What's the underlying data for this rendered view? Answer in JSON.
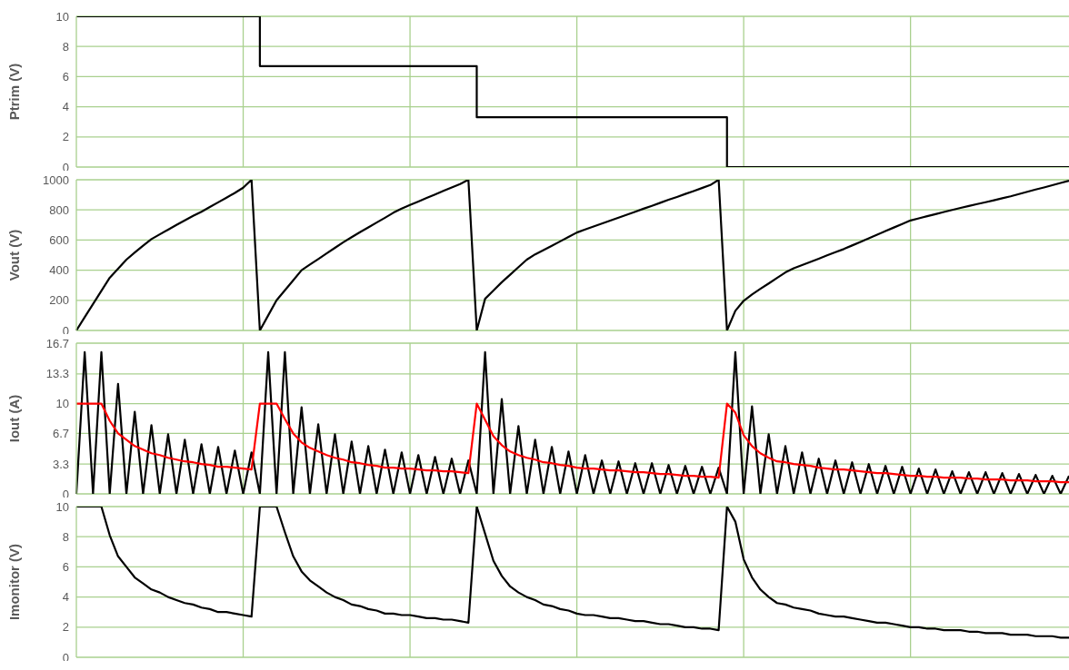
{
  "chart_data": [
    {
      "type": "step",
      "ylabel": "Ptrim (V)",
      "categories": [
        null,
        null,
        null,
        null,
        null,
        null,
        null,
        null,
        null,
        null,
        null,
        null,
        null,
        null,
        null,
        null,
        null,
        null,
        null,
        null,
        null,
        null,
        null,
        null,
        null,
        null,
        null,
        null,
        null,
        null,
        null,
        null,
        null,
        null,
        null,
        null,
        null,
        null,
        null,
        null,
        null,
        null,
        null,
        null,
        null,
        null,
        null,
        null,
        null,
        null,
        null,
        null,
        null,
        null,
        null,
        null,
        null,
        null,
        null,
        null,
        null,
        null,
        null,
        null,
        null,
        null,
        null,
        null,
        null,
        null,
        null,
        null,
        null,
        null,
        null,
        null,
        null,
        null,
        null,
        null,
        null,
        null,
        null,
        null,
        null,
        null,
        null,
        null,
        null,
        null,
        null,
        null,
        null,
        null,
        null,
        null,
        null,
        null,
        null,
        null,
        null,
        null,
        null,
        null,
        null,
        null,
        null,
        null,
        null,
        null,
        null,
        null,
        null,
        null,
        null,
        null,
        null,
        null,
        null,
        null
      ],
      "ylim": [
        0,
        10
      ],
      "yticks": [
        0,
        2,
        4,
        6,
        8,
        10
      ],
      "grid": true,
      "tick_labels": "y",
      "series": [
        {
          "color": "#000000",
          "values": [
            10,
            10,
            10,
            10,
            10,
            10,
            10,
            10,
            10,
            10,
            10,
            10,
            10,
            10,
            10,
            10,
            10,
            10,
            10,
            10,
            10,
            10,
            6.7,
            6.7,
            6.7,
            6.7,
            6.7,
            6.7,
            6.7,
            6.7,
            6.7,
            6.7,
            6.7,
            6.7,
            6.7,
            6.7,
            6.7,
            6.7,
            6.7,
            6.7,
            6.7,
            6.7,
            6.7,
            6.7,
            6.7,
            6.7,
            6.7,
            6.7,
            3.3,
            3.3,
            3.3,
            3.3,
            3.3,
            3.3,
            3.3,
            3.3,
            3.3,
            3.3,
            3.3,
            3.3,
            3.3,
            3.3,
            3.3,
            3.3,
            3.3,
            3.3,
            3.3,
            3.3,
            3.3,
            3.3,
            3.3,
            3.3,
            3.3,
            3.3,
            3.3,
            3.3,
            3.3,
            3.3,
            0,
            0,
            0,
            0,
            0,
            0,
            0,
            0,
            0,
            0,
            0,
            0,
            0,
            0,
            0,
            0,
            0,
            0,
            0,
            0,
            0,
            0,
            0,
            0,
            0,
            0,
            0,
            0,
            0,
            0,
            0,
            0,
            0,
            0,
            0,
            0,
            0,
            0,
            0,
            0,
            0,
            0
          ]
        }
      ]
    },
    {
      "type": "line",
      "ylabel": "Vout (V)",
      "categories": [
        null,
        null,
        null,
        null,
        null,
        null,
        null,
        null,
        null,
        null,
        null,
        null,
        null,
        null,
        null,
        null,
        null,
        null,
        null,
        null,
        null,
        null,
        null,
        null,
        null,
        null,
        null,
        null,
        null,
        null,
        null,
        null,
        null,
        null,
        null,
        null,
        null,
        null,
        null,
        null,
        null,
        null,
        null,
        null,
        null,
        null,
        null,
        null,
        null,
        null,
        null,
        null,
        null,
        null,
        null,
        null,
        null,
        null,
        null,
        null,
        null,
        null,
        null,
        null,
        null,
        null,
        null,
        null,
        null,
        null,
        null,
        null,
        null,
        null,
        null,
        null,
        null,
        null,
        null,
        null,
        null,
        null,
        null,
        null,
        null,
        null,
        null,
        null,
        null,
        null,
        null,
        null,
        null,
        null,
        null,
        null,
        null,
        null,
        null,
        null,
        null,
        null,
        null,
        null,
        null,
        null,
        null,
        null,
        null,
        null,
        null,
        null,
        null,
        null,
        null,
        null,
        null,
        null,
        null,
        null
      ],
      "ylim": [
        0,
        1000
      ],
      "yticks": [
        0,
        200,
        400,
        600,
        800,
        1000
      ],
      "grid": true,
      "tick_labels": "y",
      "series": [
        {
          "color": "#000000",
          "values": [
            0,
            88,
            175,
            263,
            350,
            410,
            470,
            517,
            563,
            606,
            638,
            669,
            700,
            730,
            760,
            788,
            819,
            850,
            881,
            913,
            947,
            1000,
            0,
            100,
            200,
            267,
            333,
            400,
            437,
            474,
            511,
            548,
            585,
            619,
            652,
            684,
            716,
            748,
            781,
            809,
            833,
            856,
            879,
            902,
            926,
            949,
            972,
            1000,
            0,
            210,
            265,
            320,
            370,
            420,
            470,
            505,
            533,
            562,
            591,
            621,
            650,
            670,
            690,
            709,
            729,
            749,
            768,
            788,
            808,
            827,
            847,
            867,
            886,
            906,
            925,
            945,
            965,
            1000,
            0,
            130,
            197,
            239,
            276,
            312,
            349,
            385,
            413,
            434,
            455,
            476,
            498,
            519,
            540,
            564,
            588,
            611,
            635,
            659,
            683,
            706,
            730,
            744,
            758,
            772,
            786,
            800,
            813,
            826,
            839,
            851,
            864,
            877,
            890,
            905,
            920,
            935,
            949,
            964,
            979,
            993
          ]
        }
      ]
    },
    {
      "type": "line",
      "ylabel": "Iout (A)",
      "categories": [
        null,
        null,
        null,
        null,
        null,
        null,
        null,
        null,
        null,
        null,
        null,
        null,
        null,
        null,
        null,
        null,
        null,
        null,
        null,
        null,
        null,
        null,
        null,
        null,
        null,
        null,
        null,
        null,
        null,
        null,
        null,
        null,
        null,
        null,
        null,
        null,
        null,
        null,
        null,
        null,
        null,
        null,
        null,
        null,
        null,
        null,
        null,
        null,
        null,
        null,
        null,
        null,
        null,
        null,
        null,
        null,
        null,
        null,
        null,
        null,
        null,
        null,
        null,
        null,
        null,
        null,
        null,
        null,
        null,
        null,
        null,
        null,
        null,
        null,
        null,
        null,
        null,
        null,
        null,
        null,
        null,
        null,
        null,
        null,
        null,
        null,
        null,
        null,
        null,
        null,
        null,
        null,
        null,
        null,
        null,
        null,
        null,
        null,
        null,
        null,
        null,
        null,
        null,
        null,
        null,
        null,
        null,
        null,
        null,
        null,
        null,
        null,
        null,
        null,
        null,
        null,
        null,
        null,
        null,
        null
      ],
      "ylim": [
        0,
        16.7
      ],
      "yticks": [
        0,
        3.3,
        6.7,
        10,
        13.3,
        16.7
      ],
      "grid": true,
      "tick_labels": "y",
      "series": [
        {
          "color": "#000000",
          "values": [
            0,
            15.7,
            0,
            15.7,
            0,
            12.2,
            0,
            9.1,
            0,
            7.6,
            0,
            6.6,
            0,
            6.0,
            0,
            5.5,
            0,
            5.2,
            0,
            4.8,
            0,
            4.6,
            0,
            15.7,
            0,
            15.7,
            0,
            9.6,
            0,
            7.7,
            0,
            6.6,
            0,
            5.8,
            0,
            5.3,
            0,
            4.9,
            0,
            4.6,
            0,
            4.3,
            0,
            4.1,
            0,
            3.9,
            0,
            3.7,
            0,
            15.7,
            0,
            10.5,
            0,
            7.5,
            0,
            6.0,
            0,
            5.2,
            0,
            4.7,
            0,
            4.3,
            0,
            3.7,
            0,
            3.6,
            0,
            3.4,
            0,
            3.4,
            0,
            3.2,
            0,
            3.1,
            0,
            3.0,
            0,
            2.9,
            0,
            15.7,
            0,
            9.7,
            0,
            6.6,
            0,
            5.3,
            0,
            4.6,
            0,
            3.9,
            0,
            3.7,
            0,
            3.5,
            0,
            3.3,
            0,
            3.1,
            0,
            3.0,
            0,
            2.8,
            0,
            2.7,
            0,
            2.5,
            0,
            2.4,
            0,
            2.4,
            0,
            2.3,
            0,
            2.2,
            0,
            2.1,
            0,
            2.0,
            0,
            2.0
          ]
        },
        {
          "color": "#ff0000",
          "values": [
            10,
            10,
            10,
            10,
            8.1,
            6.7,
            6.0,
            5.3,
            4.9,
            4.5,
            4.3,
            4.0,
            3.8,
            3.6,
            3.5,
            3.3,
            3.2,
            3.0,
            3.0,
            2.9,
            2.8,
            2.7,
            10,
            10,
            10,
            8.3,
            6.7,
            5.7,
            5.1,
            4.7,
            4.3,
            4.0,
            3.8,
            3.5,
            3.4,
            3.2,
            3.1,
            2.9,
            2.9,
            2.8,
            2.8,
            2.7,
            2.6,
            2.6,
            2.5,
            2.5,
            2.4,
            2.3,
            10,
            8.2,
            6.4,
            5.4,
            4.7,
            4.3,
            4.0,
            3.8,
            3.5,
            3.4,
            3.2,
            3.1,
            2.9,
            2.8,
            2.8,
            2.7,
            2.6,
            2.6,
            2.5,
            2.4,
            2.4,
            2.3,
            2.2,
            2.2,
            2.1,
            2.0,
            2.0,
            1.9,
            1.9,
            1.8,
            10,
            9.0,
            6.5,
            5.3,
            4.5,
            4.0,
            3.6,
            3.5,
            3.3,
            3.2,
            3.1,
            2.9,
            2.8,
            2.7,
            2.7,
            2.6,
            2.5,
            2.4,
            2.3,
            2.3,
            2.2,
            2.1,
            2.0,
            2.0,
            1.9,
            1.9,
            1.8,
            1.8,
            1.8,
            1.7,
            1.7,
            1.6,
            1.6,
            1.6,
            1.5,
            1.5,
            1.5,
            1.4,
            1.4,
            1.4,
            1.3,
            1.3
          ]
        }
      ]
    },
    {
      "type": "line",
      "ylabel": "Imonitor (V)",
      "categories": [
        null,
        null,
        null,
        null,
        null,
        null,
        null,
        null,
        null,
        null,
        null,
        null,
        null,
        null,
        null,
        null,
        null,
        null,
        null,
        null,
        null,
        null,
        null,
        null,
        null,
        null,
        null,
        null,
        null,
        null,
        null,
        null,
        null,
        null,
        null,
        null,
        null,
        null,
        null,
        null,
        null,
        null,
        null,
        null,
        null,
        null,
        null,
        null,
        null,
        null,
        null,
        null,
        null,
        null,
        null,
        null,
        null,
        null,
        null,
        null,
        null,
        null,
        null,
        null,
        null,
        null,
        null,
        null,
        null,
        null,
        null,
        null,
        null,
        null,
        null,
        null,
        null,
        null,
        null,
        null,
        null,
        null,
        null,
        null,
        null,
        null,
        null,
        null,
        null,
        null,
        null,
        null,
        null,
        null,
        null,
        null,
        null,
        null,
        null,
        null,
        null,
        null,
        null,
        null,
        null,
        null,
        null,
        null,
        null,
        null,
        null,
        null,
        null,
        null,
        null,
        null,
        null,
        null,
        null,
        null
      ],
      "ylim": [
        0,
        10
      ],
      "yticks": [
        0,
        2,
        4,
        6,
        8,
        10
      ],
      "grid": true,
      "tick_labels": "y",
      "series": [
        {
          "color": "#000000",
          "values": [
            10,
            10,
            10,
            10,
            8.1,
            6.7,
            6.0,
            5.3,
            4.9,
            4.5,
            4.3,
            4.0,
            3.8,
            3.6,
            3.5,
            3.3,
            3.2,
            3.0,
            3.0,
            2.9,
            2.8,
            2.7,
            10,
            10,
            10,
            8.3,
            6.7,
            5.7,
            5.1,
            4.7,
            4.3,
            4.0,
            3.8,
            3.5,
            3.4,
            3.2,
            3.1,
            2.9,
            2.9,
            2.8,
            2.8,
            2.7,
            2.6,
            2.6,
            2.5,
            2.5,
            2.4,
            2.3,
            10,
            8.2,
            6.4,
            5.4,
            4.7,
            4.3,
            4.0,
            3.8,
            3.5,
            3.4,
            3.2,
            3.1,
            2.9,
            2.8,
            2.8,
            2.7,
            2.6,
            2.6,
            2.5,
            2.4,
            2.4,
            2.3,
            2.2,
            2.2,
            2.1,
            2.0,
            2.0,
            1.9,
            1.9,
            1.8,
            10,
            9.0,
            6.5,
            5.3,
            4.5,
            4.0,
            3.6,
            3.5,
            3.3,
            3.2,
            3.1,
            2.9,
            2.8,
            2.7,
            2.7,
            2.6,
            2.5,
            2.4,
            2.3,
            2.3,
            2.2,
            2.1,
            2.0,
            2.0,
            1.9,
            1.9,
            1.8,
            1.8,
            1.8,
            1.7,
            1.7,
            1.6,
            1.6,
            1.6,
            1.5,
            1.5,
            1.5,
            1.4,
            1.4,
            1.4,
            1.3,
            1.3
          ]
        }
      ]
    }
  ]
}
